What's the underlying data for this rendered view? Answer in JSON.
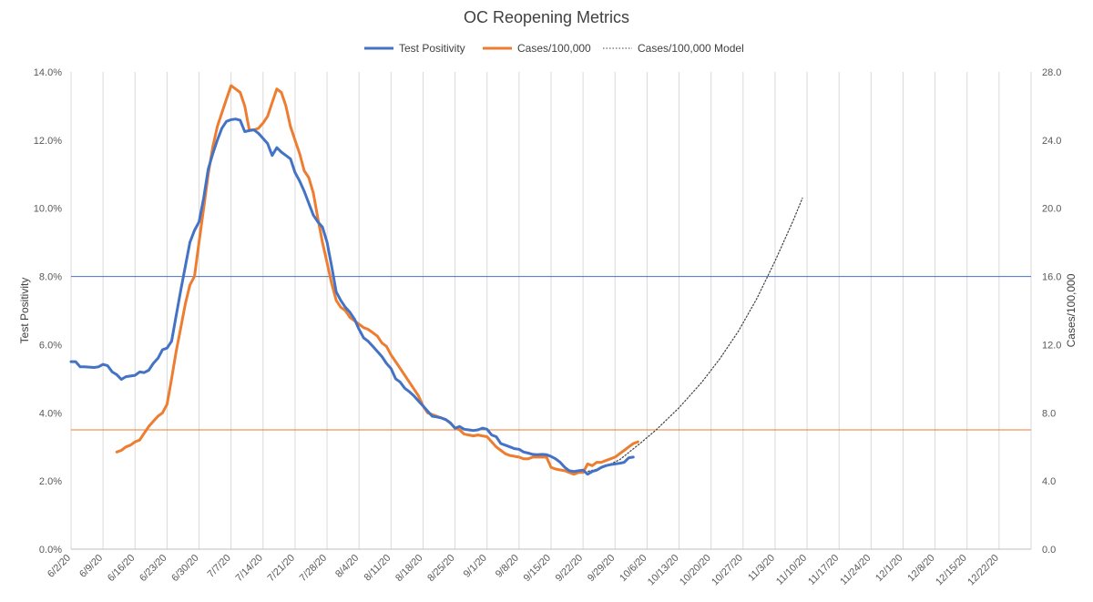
{
  "chart_data": {
    "type": "line",
    "title": "OC Reopening Metrics",
    "ylabel_left": "Test Positivity",
    "ylabel_right": "Cases/100,000",
    "ylim_left": [
      0,
      14
    ],
    "ylim_right": [
      0,
      28
    ],
    "yticks_left": [
      "0.0%",
      "2.0%",
      "4.0%",
      "6.0%",
      "8.0%",
      "10.0%",
      "12.0%",
      "14.0%"
    ],
    "yticks_right": [
      "0.0",
      "4.0",
      "8.0",
      "12.0",
      "16.0",
      "20.0",
      "24.0",
      "28.0"
    ],
    "x_start": "6/2/20",
    "x_end": "12/29/20",
    "x_tick_labels": [
      "6/2/20",
      "6/9/20",
      "6/16/20",
      "6/23/20",
      "6/30/20",
      "7/7/20",
      "7/14/20",
      "7/21/20",
      "7/28/20",
      "8/4/20",
      "8/11/20",
      "8/18/20",
      "8/25/20",
      "9/1/20",
      "9/8/20",
      "9/15/20",
      "9/22/20",
      "9/29/20",
      "10/6/20",
      "10/13/20",
      "10/20/20",
      "10/27/20",
      "11/3/20",
      "11/10/20",
      "11/17/20",
      "11/24/20",
      "12/1/20",
      "12/8/20",
      "12/15/20",
      "12/22/20"
    ],
    "grid": "vertical",
    "legend_position": "top",
    "reference_lines": [
      {
        "axis": "left",
        "value": 8.0,
        "color": "#4472c4"
      },
      {
        "axis": "left",
        "value": 3.5,
        "color": "#ed7d31"
      }
    ],
    "series": [
      {
        "name": "Test Positivity",
        "axis": "left",
        "color": "#4472c4",
        "style": "solid",
        "points": [
          [
            "6/2/20",
            5.5
          ],
          [
            "6/3/20",
            5.5
          ],
          [
            "6/4/20",
            5.35
          ],
          [
            "6/5/20",
            5.35
          ],
          [
            "6/7/20",
            5.33
          ],
          [
            "6/8/20",
            5.35
          ],
          [
            "6/9/20",
            5.42
          ],
          [
            "6/10/20",
            5.38
          ],
          [
            "6/11/20",
            5.2
          ],
          [
            "6/12/20",
            5.12
          ],
          [
            "6/13/20",
            4.98
          ],
          [
            "6/14/20",
            5.06
          ],
          [
            "6/16/20",
            5.1
          ],
          [
            "6/17/20",
            5.2
          ],
          [
            "6/18/20",
            5.18
          ],
          [
            "6/19/20",
            5.25
          ],
          [
            "6/20/20",
            5.45
          ],
          [
            "6/21/20",
            5.6
          ],
          [
            "6/22/20",
            5.85
          ],
          [
            "6/23/20",
            5.9
          ],
          [
            "6/24/20",
            6.1
          ],
          [
            "6/25/20",
            6.85
          ],
          [
            "6/26/20",
            7.6
          ],
          [
            "6/27/20",
            8.3
          ],
          [
            "6/28/20",
            9.0
          ],
          [
            "6/29/20",
            9.35
          ],
          [
            "6/30/20",
            9.6
          ],
          [
            "7/1/20",
            10.3
          ],
          [
            "7/2/20",
            11.15
          ],
          [
            "7/3/20",
            11.6
          ],
          [
            "7/4/20",
            12.0
          ],
          [
            "7/5/20",
            12.35
          ],
          [
            "7/6/20",
            12.55
          ],
          [
            "7/7/20",
            12.6
          ],
          [
            "7/8/20",
            12.62
          ],
          [
            "7/9/20",
            12.58
          ],
          [
            "7/10/20",
            12.25
          ],
          [
            "7/11/20",
            12.28
          ],
          [
            "7/12/20",
            12.3
          ],
          [
            "7/13/20",
            12.2
          ],
          [
            "7/14/20",
            12.05
          ],
          [
            "7/15/20",
            11.9
          ],
          [
            "7/16/20",
            11.55
          ],
          [
            "7/17/20",
            11.78
          ],
          [
            "7/18/20",
            11.65
          ],
          [
            "7/19/20",
            11.55
          ],
          [
            "7/20/20",
            11.45
          ],
          [
            "7/21/20",
            11.05
          ],
          [
            "7/22/20",
            10.8
          ],
          [
            "7/23/20",
            10.5
          ],
          [
            "7/24/20",
            10.15
          ],
          [
            "7/25/20",
            9.8
          ],
          [
            "7/26/20",
            9.6
          ],
          [
            "7/27/20",
            9.45
          ],
          [
            "7/28/20",
            9.0
          ],
          [
            "7/29/20",
            8.3
          ],
          [
            "7/30/20",
            7.55
          ],
          [
            "7/31/20",
            7.3
          ],
          [
            "8/1/20",
            7.1
          ],
          [
            "8/2/20",
            6.95
          ],
          [
            "8/3/20",
            6.75
          ],
          [
            "8/4/20",
            6.45
          ],
          [
            "8/5/20",
            6.2
          ],
          [
            "8/6/20",
            6.1
          ],
          [
            "8/7/20",
            5.95
          ],
          [
            "8/8/20",
            5.8
          ],
          [
            "8/9/20",
            5.65
          ],
          [
            "8/10/20",
            5.45
          ],
          [
            "8/11/20",
            5.3
          ],
          [
            "8/12/20",
            5.0
          ],
          [
            "8/13/20",
            4.9
          ],
          [
            "8/14/20",
            4.72
          ],
          [
            "8/15/20",
            4.62
          ],
          [
            "8/16/20",
            4.5
          ],
          [
            "8/17/20",
            4.35
          ],
          [
            "8/18/20",
            4.2
          ],
          [
            "8/19/20",
            4.05
          ],
          [
            "8/20/20",
            3.9
          ],
          [
            "8/21/20",
            3.88
          ],
          [
            "8/22/20",
            3.85
          ],
          [
            "8/23/20",
            3.8
          ],
          [
            "8/24/20",
            3.7
          ],
          [
            "8/25/20",
            3.55
          ],
          [
            "8/26/20",
            3.6
          ],
          [
            "8/27/20",
            3.52
          ],
          [
            "8/28/20",
            3.5
          ],
          [
            "8/29/20",
            3.48
          ],
          [
            "8/30/20",
            3.5
          ],
          [
            "8/31/20",
            3.55
          ],
          [
            "9/1/20",
            3.52
          ],
          [
            "9/2/20",
            3.35
          ],
          [
            "9/3/20",
            3.3
          ],
          [
            "9/4/20",
            3.1
          ],
          [
            "9/5/20",
            3.05
          ],
          [
            "9/6/20",
            3.0
          ],
          [
            "9/7/20",
            2.95
          ],
          [
            "9/8/20",
            2.93
          ],
          [
            "9/9/20",
            2.85
          ],
          [
            "9/10/20",
            2.82
          ],
          [
            "9/11/20",
            2.78
          ],
          [
            "9/12/20",
            2.77
          ],
          [
            "9/13/20",
            2.78
          ],
          [
            "9/14/20",
            2.77
          ],
          [
            "9/15/20",
            2.72
          ],
          [
            "9/16/20",
            2.65
          ],
          [
            "9/17/20",
            2.55
          ],
          [
            "9/18/20",
            2.4
          ],
          [
            "9/19/20",
            2.3
          ],
          [
            "9/20/20",
            2.28
          ],
          [
            "9/21/20",
            2.3
          ],
          [
            "9/22/20",
            2.32
          ],
          [
            "9/23/20",
            2.2
          ],
          [
            "9/24/20",
            2.28
          ],
          [
            "9/25/20",
            2.32
          ],
          [
            "9/26/20",
            2.4
          ],
          [
            "9/27/20",
            2.45
          ],
          [
            "9/28/20",
            2.48
          ],
          [
            "9/29/20",
            2.5
          ],
          [
            "9/30/20",
            2.52
          ],
          [
            "10/1/20",
            2.55
          ],
          [
            "10/2/20",
            2.68
          ],
          [
            "10/3/20",
            2.7
          ]
        ]
      },
      {
        "name": "Cases/100,000",
        "axis": "right",
        "color": "#ed7d31",
        "style": "solid",
        "points": [
          [
            "6/12/20",
            5.7
          ],
          [
            "6/13/20",
            5.8
          ],
          [
            "6/14/20",
            6.0
          ],
          [
            "6/15/20",
            6.1
          ],
          [
            "6/16/20",
            6.3
          ],
          [
            "6/17/20",
            6.4
          ],
          [
            "6/18/20",
            6.8
          ],
          [
            "6/19/20",
            7.2
          ],
          [
            "6/20/20",
            7.5
          ],
          [
            "6/21/20",
            7.8
          ],
          [
            "6/22/20",
            8.0
          ],
          [
            "6/23/20",
            8.5
          ],
          [
            "6/24/20",
            10.0
          ],
          [
            "6/25/20",
            11.6
          ],
          [
            "6/26/20",
            13.0
          ],
          [
            "6/27/20",
            14.4
          ],
          [
            "6/28/20",
            15.5
          ],
          [
            "6/29/20",
            16.0
          ],
          [
            "6/30/20",
            18.0
          ],
          [
            "7/1/20",
            20.0
          ],
          [
            "7/2/20",
            22.0
          ],
          [
            "7/3/20",
            23.6
          ],
          [
            "7/4/20",
            24.8
          ],
          [
            "7/5/20",
            25.6
          ],
          [
            "7/6/20",
            26.4
          ],
          [
            "7/7/20",
            27.2
          ],
          [
            "7/8/20",
            27.0
          ],
          [
            "7/9/20",
            26.8
          ],
          [
            "7/10/20",
            26.0
          ],
          [
            "7/11/20",
            24.6
          ],
          [
            "7/12/20",
            24.6
          ],
          [
            "7/13/20",
            24.7
          ],
          [
            "7/14/20",
            25.0
          ],
          [
            "7/15/20",
            25.4
          ],
          [
            "7/16/20",
            26.2
          ],
          [
            "7/17/20",
            27.0
          ],
          [
            "7/18/20",
            26.8
          ],
          [
            "7/19/20",
            26.0
          ],
          [
            "7/20/20",
            24.8
          ],
          [
            "7/21/20",
            24.0
          ],
          [
            "7/22/20",
            23.2
          ],
          [
            "7/23/20",
            22.2
          ],
          [
            "7/24/20",
            21.8
          ],
          [
            "7/25/20",
            20.9
          ],
          [
            "7/26/20",
            19.4
          ],
          [
            "7/27/20",
            18.0
          ],
          [
            "7/28/20",
            16.8
          ],
          [
            "7/29/20",
            15.6
          ],
          [
            "7/30/20",
            14.6
          ],
          [
            "7/31/20",
            14.2
          ],
          [
            "8/1/20",
            14.0
          ],
          [
            "8/2/20",
            13.6
          ],
          [
            "8/3/20",
            13.4
          ],
          [
            "8/4/20",
            13.2
          ],
          [
            "8/5/20",
            13.0
          ],
          [
            "8/6/20",
            12.9
          ],
          [
            "8/7/20",
            12.7
          ],
          [
            "8/8/20",
            12.5
          ],
          [
            "8/9/20",
            12.1
          ],
          [
            "8/10/20",
            11.9
          ],
          [
            "8/11/20",
            11.4
          ],
          [
            "8/12/20",
            11.0
          ],
          [
            "8/13/20",
            10.6
          ],
          [
            "8/14/20",
            10.2
          ],
          [
            "8/15/20",
            9.8
          ],
          [
            "8/16/20",
            9.4
          ],
          [
            "8/17/20",
            9.0
          ],
          [
            "8/18/20",
            8.4
          ],
          [
            "8/19/20",
            8.0
          ],
          [
            "8/20/20",
            7.9
          ],
          [
            "8/21/20",
            7.8
          ],
          [
            "8/22/20",
            7.7
          ],
          [
            "8/23/20",
            7.6
          ],
          [
            "8/24/20",
            7.4
          ],
          [
            "8/25/20",
            7.1
          ],
          [
            "8/26/20",
            7.0
          ],
          [
            "8/27/20",
            6.75
          ],
          [
            "8/28/20",
            6.7
          ],
          [
            "8/29/20",
            6.65
          ],
          [
            "8/30/20",
            6.7
          ],
          [
            "8/31/20",
            6.65
          ],
          [
            "9/1/20",
            6.6
          ],
          [
            "9/2/20",
            6.3
          ],
          [
            "9/3/20",
            6.0
          ],
          [
            "9/4/20",
            5.8
          ],
          [
            "9/5/20",
            5.6
          ],
          [
            "9/6/20",
            5.5
          ],
          [
            "9/7/20",
            5.45
          ],
          [
            "9/8/20",
            5.4
          ],
          [
            "9/9/20",
            5.3
          ],
          [
            "9/10/20",
            5.3
          ],
          [
            "9/11/20",
            5.4
          ],
          [
            "9/12/20",
            5.4
          ],
          [
            "9/13/20",
            5.4
          ],
          [
            "9/14/20",
            5.4
          ],
          [
            "9/15/20",
            4.8
          ],
          [
            "9/16/20",
            4.7
          ],
          [
            "9/17/20",
            4.65
          ],
          [
            "9/18/20",
            4.6
          ],
          [
            "9/19/20",
            4.5
          ],
          [
            "9/20/20",
            4.4
          ],
          [
            "9/21/20",
            4.5
          ],
          [
            "9/22/20",
            4.5
          ],
          [
            "9/23/20",
            5.0
          ],
          [
            "9/24/20",
            4.9
          ],
          [
            "9/25/20",
            5.1
          ],
          [
            "9/26/20",
            5.1
          ],
          [
            "9/27/20",
            5.2
          ],
          [
            "9/28/20",
            5.3
          ],
          [
            "9/29/20",
            5.4
          ],
          [
            "9/30/20",
            5.6
          ],
          [
            "10/1/20",
            5.8
          ],
          [
            "10/2/20",
            6.0
          ],
          [
            "10/3/20",
            6.2
          ],
          [
            "10/4/20",
            6.3
          ]
        ]
      },
      {
        "name": "Cases/100,000 Model",
        "axis": "right",
        "color": "#404040",
        "style": "dotted",
        "points": [
          [
            "9/18/20",
            4.6
          ],
          [
            "9/22/20",
            4.5
          ],
          [
            "9/26/20",
            4.75
          ],
          [
            "9/30/20",
            5.25
          ],
          [
            "10/4/20",
            6.1
          ],
          [
            "10/8/20",
            7.0
          ],
          [
            "10/13/20",
            8.3
          ],
          [
            "10/18/20",
            9.8
          ],
          [
            "10/22/20",
            11.2
          ],
          [
            "10/26/20",
            12.8
          ],
          [
            "10/30/20",
            14.7
          ],
          [
            "11/3/20",
            16.9
          ],
          [
            "11/7/20",
            19.3
          ],
          [
            "11/9/20",
            20.6
          ]
        ]
      }
    ]
  }
}
